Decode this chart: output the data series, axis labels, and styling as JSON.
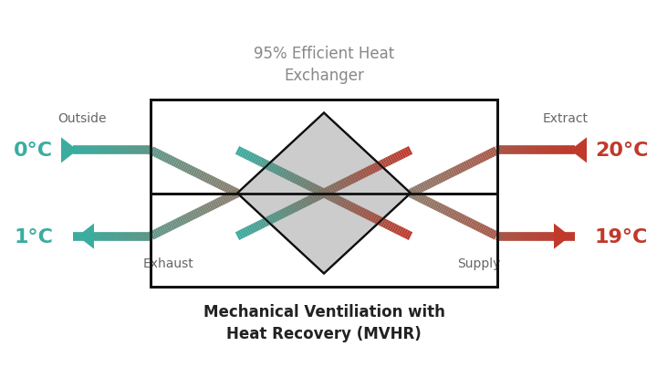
{
  "title_top": "95% Efficient Heat\nExchanger",
  "title_bottom": "Mechanical Ventiliation with\nHeat Recovery (MVHR)",
  "title_top_color": "#888888",
  "title_bottom_color": "#222222",
  "background_color": "#ffffff",
  "box_color": "#111111",
  "diamond_fill": "#cccccc",
  "diamond_edge": "#111111",
  "teal": "#3aada0",
  "red": "#c0392b",
  "mid": "#8b7b6b",
  "label_outside": "Outside",
  "label_extract": "Extract",
  "label_exhaust": "Exhaust",
  "label_supply": "Supply",
  "temp_0": "0°C",
  "temp_20": "20°C",
  "temp_1": "1°C",
  "temp_19": "19°C",
  "pipe_lw": 7,
  "n_grad": 80
}
